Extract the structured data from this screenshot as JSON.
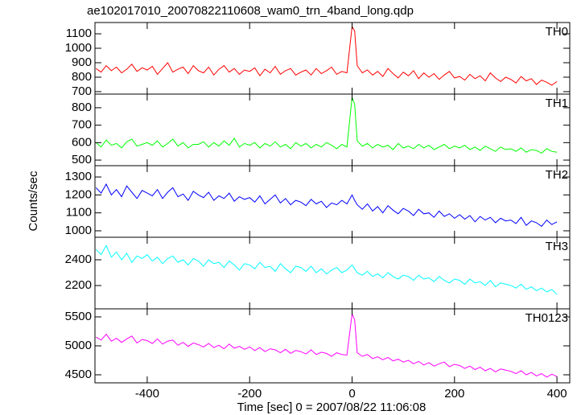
{
  "chart_data": {
    "type": "line",
    "title": "ae102017010_20070822110608_wam0_trn_4band_long.qdp",
    "xlabel": "Time [sec] 0 = 2007/08/22 11:06:08",
    "ylabel": "Counts/sec",
    "xlim": [
      -502,
      425
    ],
    "xticks": [
      -400,
      -200,
      0,
      200,
      400
    ],
    "x": [
      -500,
      -490,
      -480,
      -470,
      -460,
      -450,
      -440,
      -430,
      -420,
      -410,
      -400,
      -390,
      -380,
      -370,
      -360,
      -350,
      -340,
      -330,
      -320,
      -310,
      -300,
      -290,
      -280,
      -270,
      -260,
      -250,
      -240,
      -230,
      -220,
      -210,
      -200,
      -190,
      -180,
      -170,
      -160,
      -150,
      -140,
      -130,
      -120,
      -110,
      -100,
      -90,
      -80,
      -70,
      -60,
      -50,
      -40,
      -30,
      -20,
      -10,
      0,
      5,
      10,
      20,
      30,
      40,
      50,
      60,
      70,
      80,
      90,
      100,
      110,
      120,
      130,
      140,
      150,
      160,
      170,
      180,
      190,
      200,
      210,
      220,
      230,
      240,
      250,
      260,
      270,
      280,
      290,
      300,
      310,
      320,
      330,
      340,
      350,
      360,
      370,
      380,
      390,
      400
    ],
    "series": [
      {
        "name": "TH0",
        "color": "#ff0000",
        "ylim": [
          683,
          1178
        ],
        "yticks": [
          700,
          800,
          900,
          1000,
          1100
        ],
        "values": [
          860,
          835,
          880,
          845,
          870,
          830,
          855,
          890,
          840,
          865,
          850,
          875,
          820,
          860,
          900,
          835,
          855,
          870,
          825,
          880,
          845,
          830,
          870,
          815,
          855,
          880,
          835,
          860,
          820,
          850,
          840,
          865,
          810,
          855,
          830,
          875,
          820,
          845,
          860,
          815,
          835,
          850,
          815,
          860,
          825,
          845,
          870,
          820,
          840,
          830,
          1150,
          1120,
          880,
          830,
          850,
          815,
          840,
          805,
          860,
          825,
          795,
          835,
          810,
          845,
          790,
          830,
          800,
          825,
          785,
          815,
          840,
          795,
          805,
          780,
          820,
          790,
          810,
          775,
          830,
          795,
          770,
          800,
          785,
          760,
          805,
          775,
          790,
          750,
          780,
          765,
          745,
          770
        ]
      },
      {
        "name": "TH1",
        "color": "#00ff00",
        "ylim": [
          468,
          878
        ],
        "yticks": [
          500,
          600,
          700,
          800
        ],
        "values": [
          600,
          575,
          615,
          585,
          595,
          570,
          605,
          620,
          580,
          590,
          600,
          585,
          610,
          575,
          595,
          620,
          580,
          600,
          570,
          590,
          590,
          605,
          575,
          600,
          580,
          610,
          585,
          625,
          575,
          595,
          585,
          600,
          570,
          595,
          580,
          605,
          575,
          590,
          565,
          600,
          580,
          595,
          570,
          590,
          575,
          600,
          585,
          565,
          590,
          575,
          860,
          820,
          610,
          580,
          595,
          570,
          590,
          575,
          585,
          560,
          595,
          570,
          580,
          565,
          590,
          570,
          585,
          560,
          575,
          590,
          565,
          580,
          570,
          585,
          560,
          575,
          555,
          580,
          565,
          550,
          575,
          560,
          565,
          550,
          570,
          545,
          560,
          555,
          540,
          565,
          550,
          545
        ]
      },
      {
        "name": "TH2",
        "color": "#0000ff",
        "ylim": [
          964,
          1363
        ],
        "yticks": [
          1000,
          1100,
          1200,
          1300
        ],
        "values": [
          1240,
          1210,
          1260,
          1200,
          1230,
          1190,
          1250,
          1215,
          1180,
          1225,
          1210,
          1195,
          1230,
          1180,
          1215,
          1240,
          1190,
          1205,
          1170,
          1220,
          1200,
          1185,
          1215,
          1170,
          1195,
          1180,
          1210,
          1165,
          1190,
          1175,
          1185,
          1160,
          1195,
          1150,
          1175,
          1200,
          1155,
          1180,
          1145,
          1170,
          1160,
          1140,
          1175,
          1150,
          1165,
          1130,
          1155,
          1145,
          1170,
          1150,
          1200,
          1170,
          1145,
          1120,
          1150,
          1110,
          1135,
          1100,
          1140,
          1115,
          1095,
          1125,
          1110,
          1085,
          1120,
          1095,
          1100,
          1075,
          1110,
          1080,
          1095,
          1070,
          1090,
          1065,
          1085,
          1050,
          1080,
          1060,
          1075,
          1045,
          1070,
          1055,
          1060,
          1040,
          1075,
          1030,
          1055,
          1045,
          1025,
          1060,
          1035,
          1050
        ]
      },
      {
        "name": "TH3",
        "color": "#00ffff",
        "ylim": [
          2019,
          2575
        ],
        "yticks": [
          2200,
          2400
        ],
        "values": [
          2480,
          2440,
          2510,
          2420,
          2460,
          2400,
          2450,
          2380,
          2430,
          2410,
          2440,
          2390,
          2420,
          2370,
          2410,
          2430,
          2380,
          2400,
          2360,
          2410,
          2390,
          2350,
          2400,
          2370,
          2380,
          2340,
          2390,
          2360,
          2320,
          2370,
          2360,
          2330,
          2380,
          2340,
          2350,
          2310,
          2370,
          2330,
          2300,
          2350,
          2340,
          2310,
          2350,
          2300,
          2330,
          2290,
          2320,
          2340,
          2300,
          2320,
          2360,
          2330,
          2300,
          2280,
          2310,
          2270,
          2290,
          2260,
          2300,
          2270,
          2250,
          2280,
          2270,
          2240,
          2280,
          2250,
          2260,
          2230,
          2270,
          2240,
          2220,
          2250,
          2240,
          2210,
          2250,
          2220,
          2230,
          2200,
          2240,
          2190,
          2220,
          2210,
          2200,
          2180,
          2210,
          2170,
          2190,
          2160,
          2180,
          2150,
          2170,
          2130
        ]
      },
      {
        "name": "TH0123",
        "color": "#ff00ff",
        "ylim": [
          4361,
          5639
        ],
        "yticks": [
          4500,
          5000,
          5500
        ],
        "values": [
          5150,
          5100,
          5200,
          5080,
          5130,
          5060,
          5120,
          5170,
          5050,
          5110,
          5090,
          5040,
          5120,
          5030,
          5080,
          5100,
          5010,
          5060,
          4990,
          5050,
          5020,
          4980,
          5040,
          4970,
          5010,
          4950,
          5030,
          4960,
          4990,
          4940,
          4980,
          4920,
          4970,
          4900,
          4950,
          4930,
          4880,
          4940,
          4870,
          4920,
          4900,
          4860,
          4930,
          4850,
          4890,
          4870,
          4820,
          4880,
          4850,
          4840,
          5550,
          5450,
          4880,
          4820,
          4850,
          4780,
          4810,
          4760,
          4800,
          4740,
          4770,
          4720,
          4750,
          4690,
          4730,
          4670,
          4710,
          4650,
          4690,
          4720,
          4640,
          4680,
          4660,
          4610,
          4650,
          4590,
          4630,
          4570,
          4610,
          4550,
          4600,
          4580,
          4560,
          4520,
          4570,
          4500,
          4540,
          4480,
          4520,
          4460,
          4510,
          4470
        ]
      }
    ]
  }
}
